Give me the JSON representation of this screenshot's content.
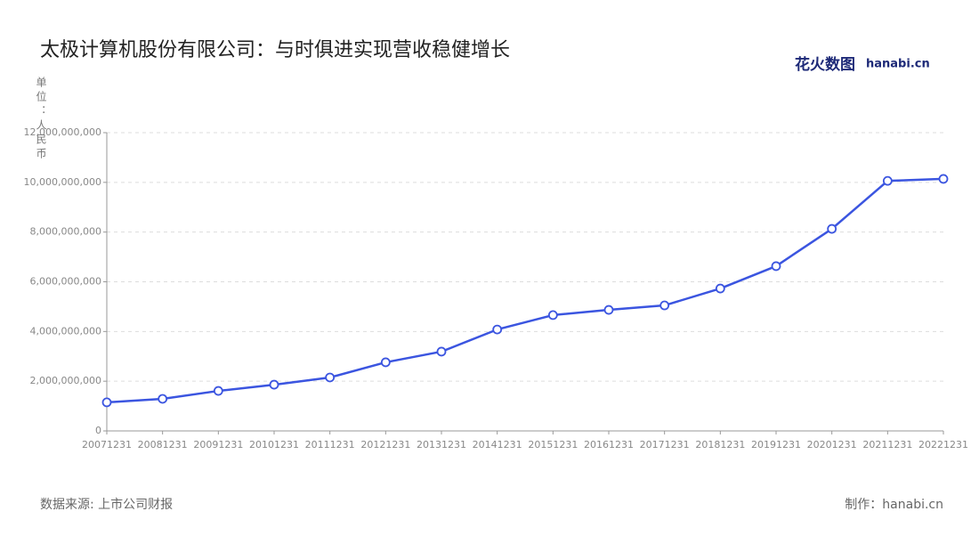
{
  "chart_data": {
    "type": "line",
    "title": "太极计算机股份有限公司：与时俱进实现营收稳健增长",
    "y_label": "单位：人民币",
    "logo_text": "花火数图",
    "logo_domain": "hanabi.cn",
    "source": "数据来源: 上市公司财报",
    "credit": "制作：hanabi.cn",
    "categories": [
      "20071231",
      "20081231",
      "20091231",
      "20101231",
      "20111231",
      "20121231",
      "20131231",
      "20141231",
      "20151231",
      "20161231",
      "20171231",
      "20181231",
      "20191231",
      "20201231",
      "20211231",
      "20221231"
    ],
    "values": [
      1150000000,
      1290000000,
      1610000000,
      1860000000,
      2150000000,
      2760000000,
      3190000000,
      4080000000,
      4660000000,
      4870000000,
      5050000000,
      5730000000,
      6630000000,
      8130000000,
      10060000000,
      10140000000
    ],
    "color": "#3b55e0",
    "ylim": [
      0,
      12000000000
    ],
    "yticks": [
      0,
      {
        "value": 2000000000,
        "label": "2,000,000,000"
      },
      {
        "value": 4000000000,
        "label": "4,000,000,000"
      },
      {
        "value": 6000000000,
        "label": "6,000,000,000"
      },
      {
        "value": 8000000000,
        "label": "8,000,000,000"
      },
      {
        "value": 10000000000,
        "label": "10,000,000,000"
      },
      {
        "value": 12000000000,
        "label": "12,000,000,000"
      }
    ],
    "grid": true
  }
}
